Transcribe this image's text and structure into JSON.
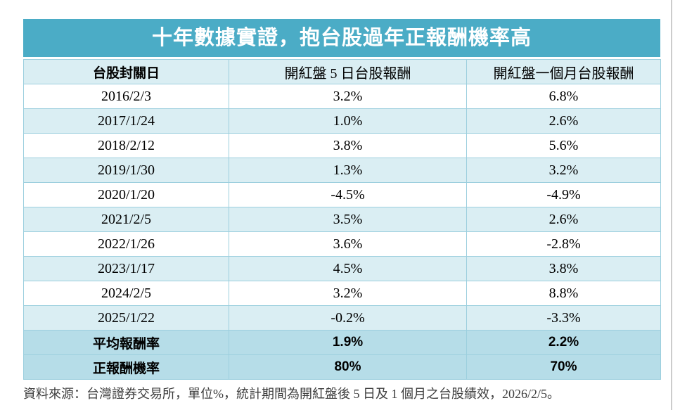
{
  "colors": {
    "accent_teal": "#4BACC6",
    "row_light_blue": "#DAEEF3",
    "summary_blue": "#B6DDE8",
    "grid_border": "#9ccfde",
    "title_text": "#ffffff",
    "body_text": "#000000",
    "note_text": "#3d3d3d"
  },
  "table": {
    "title": "十年數據實證，抱台股過年正報酬機率高",
    "columns": [
      "台股封關日",
      "開紅盤 5 日台股報酬",
      "開紅盤一個月台股報酬"
    ],
    "rows": [
      [
        "2016/2/3",
        "3.2%",
        "6.8%"
      ],
      [
        "2017/1/24",
        "1.0%",
        "2.6%"
      ],
      [
        "2018/2/12",
        "3.8%",
        "5.6%"
      ],
      [
        "2019/1/30",
        "1.3%",
        "3.2%"
      ],
      [
        "2020/1/20",
        "-4.5%",
        "-4.9%"
      ],
      [
        "2021/2/5",
        "3.5%",
        "2.6%"
      ],
      [
        "2022/1/26",
        "3.6%",
        "-2.8%"
      ],
      [
        "2023/1/17",
        "4.5%",
        "3.8%"
      ],
      [
        "2024/2/5",
        "3.2%",
        "8.8%"
      ],
      [
        "2025/1/22",
        "-0.2%",
        "-3.3%"
      ]
    ],
    "summary": [
      [
        "平均報酬率",
        "1.9%",
        "2.2%"
      ],
      [
        "正報酬機率",
        "80%",
        "70%"
      ]
    ]
  },
  "footer": {
    "source_note": "資料來源：台灣證券交易所，單位%，統計期間為開紅盤後 5 日及 1 個月之台股績效，2026/2/5。"
  },
  "chart_data": {
    "type": "table",
    "title": "十年數據實證，抱台股過年正報酬機率高",
    "categories": [
      "2016/2/3",
      "2017/1/24",
      "2018/2/12",
      "2019/1/30",
      "2020/1/20",
      "2021/2/5",
      "2022/1/26",
      "2023/1/17",
      "2024/2/5",
      "2025/1/22"
    ],
    "series": [
      {
        "name": "開紅盤 5 日台股報酬 (%)",
        "values": [
          3.2,
          1.0,
          3.8,
          1.3,
          -4.5,
          3.5,
          3.6,
          4.5,
          3.2,
          -0.2
        ]
      },
      {
        "name": "開紅盤一個月台股報酬 (%)",
        "values": [
          6.8,
          2.6,
          5.6,
          3.2,
          -4.9,
          2.6,
          -2.8,
          3.8,
          8.8,
          -3.3
        ]
      }
    ],
    "summary": {
      "平均報酬率": {
        "開紅盤 5 日台股報酬": "1.9%",
        "開紅盤一個月台股報酬": "2.2%"
      },
      "正報酬機率": {
        "開紅盤 5 日台股報酬": "80%",
        "開紅盤一個月台股報酬": "70%"
      }
    },
    "source": "資料來源：台灣證券交易所，單位%，統計期間為開紅盤後 5 日及 1 個月之台股績效，2026/2/5。"
  }
}
